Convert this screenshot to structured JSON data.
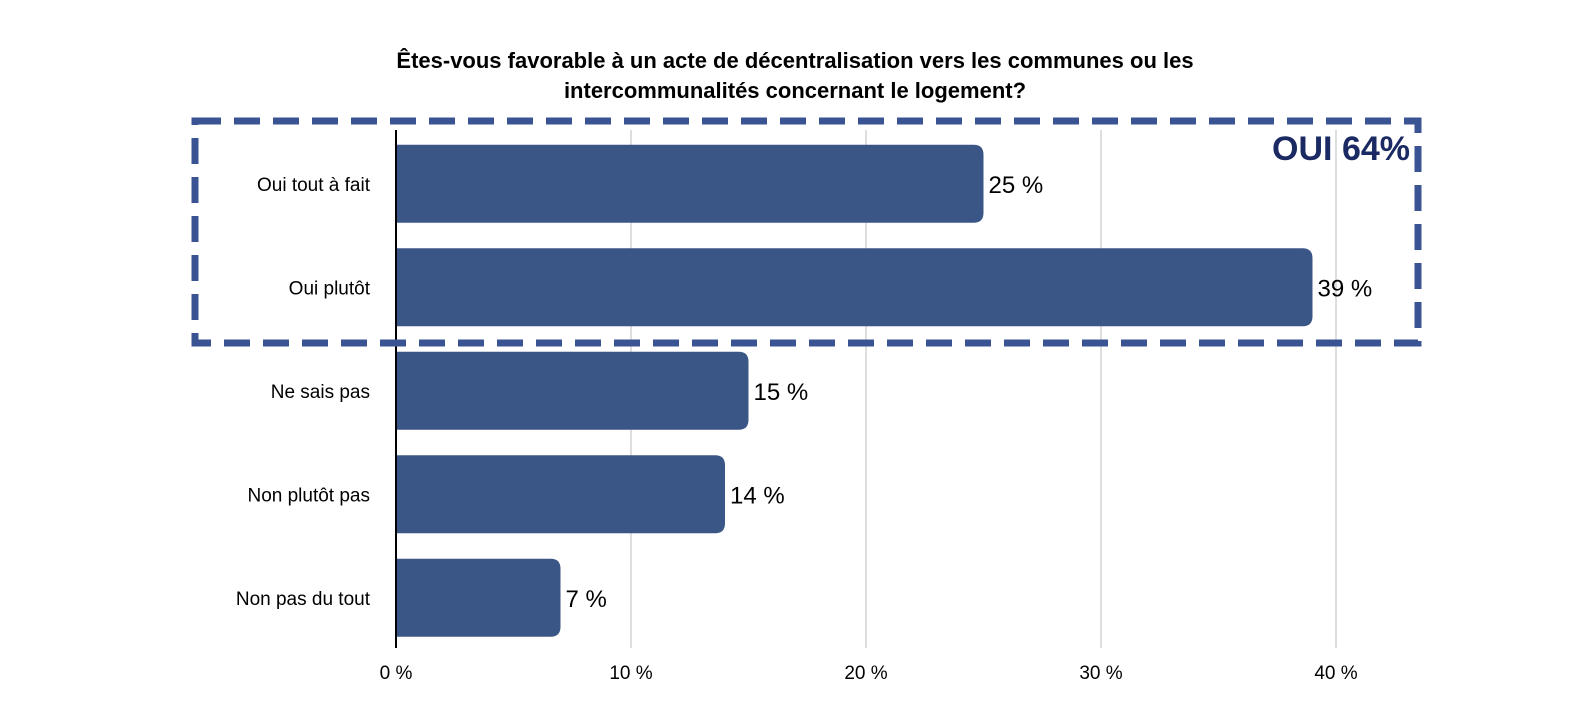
{
  "chart_data": {
    "type": "bar",
    "orientation": "horizontal",
    "title_lines": [
      "Êtes-vous favorable à un acte de décentralisation vers les communes ou les",
      "intercommunalités concernant le logement?"
    ],
    "categories": [
      "Oui tout à fait",
      "Oui plutôt",
      "Ne sais pas",
      "Non plutôt pas",
      "Non pas du tout"
    ],
    "values": [
      25,
      39,
      15,
      14,
      7
    ],
    "data_labels": [
      "25 %",
      "39 %",
      "15 %",
      "14 %",
      "7 %"
    ],
    "xlim": [
      0,
      44
    ],
    "xticks": [
      0,
      10,
      20,
      30,
      40
    ],
    "xtick_labels": [
      "0 %",
      "10 %",
      "20 %",
      "30 %",
      "40 %"
    ],
    "grid": "vertical",
    "xlabel": "",
    "ylabel": "",
    "highlight": {
      "label": "OUI 64%",
      "categories": [
        "Oui tout à fait",
        "Oui plutôt"
      ]
    },
    "colors": {
      "bar": "#3a5686",
      "highlight_border": "#3a5393",
      "highlight_text": "#1b2a63",
      "grid": "#c8c8c8",
      "axis": "#000000"
    }
  }
}
